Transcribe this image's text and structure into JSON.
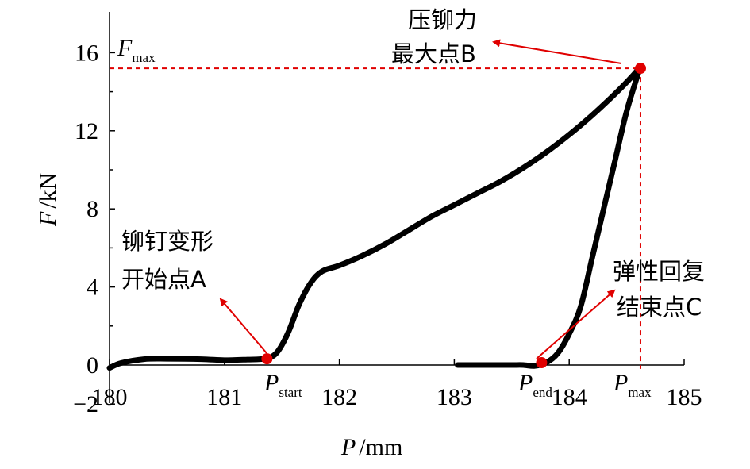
{
  "chart_data": {
    "type": "line",
    "xlabel": {
      "symbol": "P",
      "unit": "/mm"
    },
    "ylabel": {
      "symbol": "F",
      "unit": "/kN"
    },
    "xlim": [
      180,
      185
    ],
    "ylim": [
      -2,
      17.5
    ],
    "x_ticks": [
      180,
      181,
      182,
      183,
      184,
      185
    ],
    "y_ticks": [
      -2,
      0,
      4,
      8,
      12,
      16
    ],
    "x_tick_labels": [
      "180",
      "181",
      "182",
      "183",
      "184",
      "185"
    ],
    "y_tick_labels": [
      "−2",
      "0",
      "4",
      "8",
      "12",
      "16"
    ],
    "grid": false,
    "series": [
      {
        "color": "#000000",
        "points": [
          [
            180.0,
            -0.15
          ],
          [
            180.1,
            0.1
          ],
          [
            180.3,
            0.3
          ],
          [
            180.5,
            0.32
          ],
          [
            180.8,
            0.3
          ],
          [
            181.0,
            0.25
          ],
          [
            181.2,
            0.28
          ],
          [
            181.35,
            0.33
          ],
          [
            181.45,
            0.6
          ],
          [
            181.55,
            1.6
          ],
          [
            181.65,
            3.1
          ],
          [
            181.75,
            4.2
          ],
          [
            181.85,
            4.8
          ],
          [
            182.0,
            5.1
          ],
          [
            182.2,
            5.6
          ],
          [
            182.4,
            6.2
          ],
          [
            182.6,
            6.9
          ],
          [
            182.8,
            7.6
          ],
          [
            183.0,
            8.2
          ],
          [
            183.2,
            8.8
          ],
          [
            183.4,
            9.4
          ],
          [
            183.6,
            10.1
          ],
          [
            183.8,
            10.9
          ],
          [
            184.0,
            11.8
          ],
          [
            184.2,
            12.8
          ],
          [
            184.4,
            13.9
          ],
          [
            184.55,
            14.8
          ],
          [
            184.62,
            15.3
          ]
        ]
      },
      {
        "color": "#000000",
        "points": [
          [
            184.62,
            15.3
          ],
          [
            184.5,
            13.0
          ],
          [
            184.4,
            10.5
          ],
          [
            184.3,
            8.0
          ],
          [
            184.2,
            5.5
          ],
          [
            184.1,
            3.0
          ],
          [
            184.0,
            1.6
          ],
          [
            183.9,
            0.6
          ],
          [
            183.8,
            0.12
          ],
          [
            183.7,
            -0.05
          ],
          [
            183.6,
            0.0
          ],
          [
            183.5,
            0.0
          ],
          [
            183.3,
            0.0
          ],
          [
            183.03,
            0.0
          ]
        ]
      }
    ],
    "reference_lines": [
      {
        "orientation": "horizontal",
        "y": 15.2,
        "x_from": 180,
        "x_to": 184.62,
        "color": "#e00000",
        "style": "dashed"
      },
      {
        "orientation": "vertical",
        "x": 184.62,
        "y_from": 15.2,
        "y_to": -0.2,
        "color": "#e00000",
        "style": "dashed"
      }
    ],
    "points_of_interest": [
      {
        "name": "A",
        "x": 181.37,
        "y": 0.32,
        "color": "#e00000"
      },
      {
        "name": "B",
        "x": 184.62,
        "y": 15.2,
        "color": "#e00000"
      },
      {
        "name": "C",
        "x": 183.76,
        "y": 0.12,
        "color": "#e00000"
      }
    ],
    "marker_labels": {
      "fmax": {
        "main": "F",
        "sub": "max"
      },
      "pstart": {
        "main": "P",
        "sub": "start"
      },
      "pend": {
        "main": "P",
        "sub": "end"
      },
      "pmax": {
        "main": "P",
        "sub": "max"
      }
    },
    "annotations": [
      {
        "id": "A",
        "lines": [
          "铆钉变形",
          "开始点A"
        ]
      },
      {
        "id": "B",
        "lines": [
          "压铆力",
          "最大点B"
        ]
      },
      {
        "id": "C",
        "lines": [
          "弹性回复",
          "结束点C"
        ]
      }
    ]
  }
}
